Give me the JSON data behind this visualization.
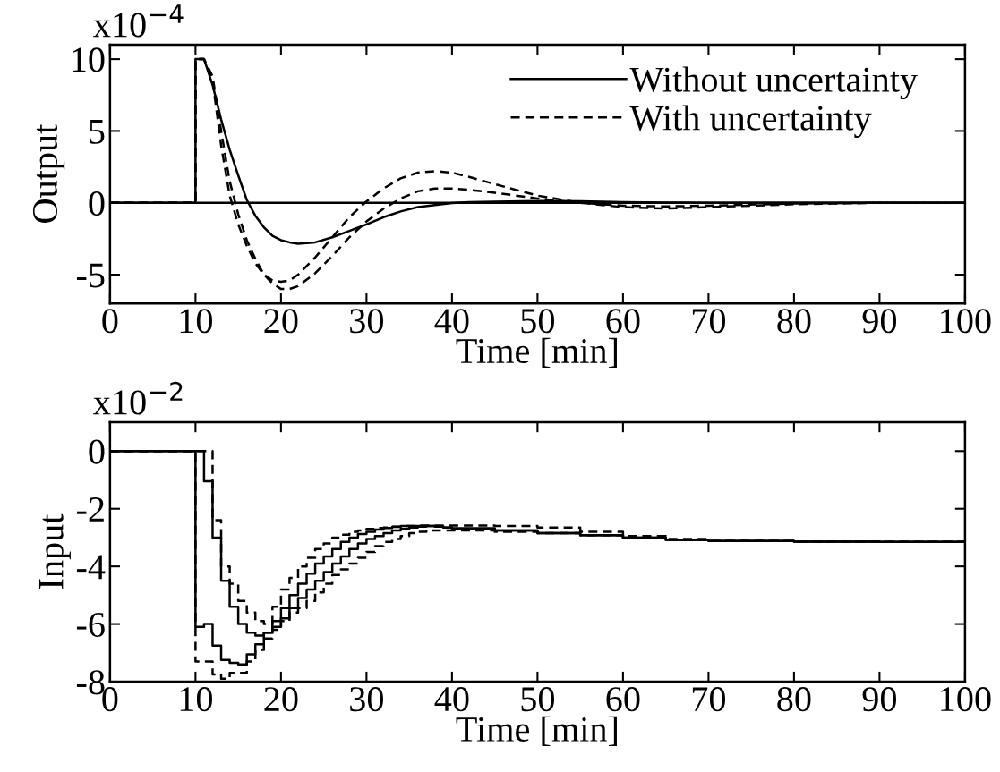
{
  "chart_data": [
    {
      "type": "line",
      "xlabel": "Time [min]",
      "ylabel": "Output",
      "annotations": [
        "x10$^{−4}$"
      ],
      "legend": "top right",
      "x": [
        0,
        10,
        10,
        11,
        12,
        13,
        14,
        15,
        16,
        17,
        18,
        19,
        20,
        21,
        22,
        24,
        26,
        28,
        30,
        32,
        34,
        36,
        38,
        40,
        42,
        45,
        50,
        55,
        60,
        65,
        70,
        80,
        90,
        100
      ],
      "series": [
        {
          "name": "Without uncertainty",
          "color": "#000000",
          "line_style": "solid",
          "values": [
            0,
            0,
            10,
            10,
            8.2,
            5.8,
            3.7,
            1.9,
            0.2,
            -0.9,
            -1.7,
            -2.3,
            -2.6,
            -2.75,
            -2.85,
            -2.75,
            -2.4,
            -1.95,
            -1.5,
            -1.0,
            -0.6,
            -0.3,
            -0.15,
            -0.02,
            0.05,
            0.08,
            0.12,
            0.1,
            0.05,
            0.02,
            0,
            0,
            0,
            0
          ]
        },
        {
          "name": "With uncertainty",
          "color": "#000000",
          "line_style": "dashed",
          "values": [
            0,
            0,
            10,
            10,
            8.5,
            4.0,
            0.5,
            -1.5,
            -3.0,
            -4.2,
            -5.0,
            -5.4,
            -5.5,
            -5.4,
            -5.0,
            -3.8,
            -2.4,
            -1.0,
            0.1,
            1.0,
            1.7,
            2.1,
            2.2,
            2.1,
            1.8,
            1.3,
            0.5,
            0.0,
            -0.3,
            -0.4,
            -0.3,
            -0.1,
            0,
            0
          ]
        },
        {
          "color": "#000000",
          "line_style": "dashed",
          "values": [
            0,
            0,
            10,
            10,
            8.8,
            5.0,
            1.5,
            -0.8,
            -2.6,
            -3.9,
            -5.0,
            -5.6,
            -6.0,
            -6.0,
            -5.8,
            -4.9,
            -3.7,
            -2.4,
            -1.3,
            -0.4,
            0.3,
            0.8,
            1.0,
            1.0,
            0.9,
            0.7,
            0.3,
            0.0,
            -0.2,
            -0.25,
            -0.2,
            -0.05,
            0,
            0
          ]
        }
      ],
      "ref_lines": [
        {
          "axis": "y",
          "value": 0,
          "color": "#000000",
          "line_style": "solid"
        }
      ],
      "xlim": [
        0,
        100
      ],
      "xticks": [
        0,
        10,
        20,
        30,
        40,
        50,
        60,
        70,
        80,
        90,
        100
      ],
      "ylim": [
        -7,
        11
      ],
      "yticks": [
        -5,
        0,
        5,
        10
      ],
      "grid": false
    },
    {
      "type": "step",
      "xlabel": "Time [min]",
      "ylabel": "Input",
      "annotations": [
        "x10$^{−2}$"
      ],
      "legend": false,
      "x": [
        0,
        10,
        11,
        12,
        13,
        14,
        15,
        16,
        17,
        18,
        19,
        20,
        21,
        22,
        23,
        24,
        25,
        26,
        27,
        28,
        29,
        30,
        31,
        32,
        33,
        34,
        35,
        36,
        37,
        38,
        39,
        40,
        45,
        50,
        55,
        60,
        65,
        70,
        80,
        90,
        100
      ],
      "series": [
        {
          "color": "#000000",
          "line_style": "solid",
          "values": [
            0,
            0,
            -1.05,
            -3.0,
            -4.5,
            -5.4,
            -6.0,
            -6.3,
            -6.4,
            -6.3,
            -6.1,
            -5.8,
            -5.45,
            -5.1,
            -4.8,
            -4.5,
            -4.2,
            -3.9,
            -3.65,
            -3.4,
            -3.2,
            -3.05,
            -2.95,
            -2.85,
            -2.75,
            -2.7,
            -2.65,
            -2.62,
            -2.6,
            -2.62,
            -2.65,
            -2.68,
            -2.75,
            -2.85,
            -2.92,
            -3.0,
            -3.08,
            -3.12,
            -3.14,
            -3.15,
            -3.15
          ]
        },
        {
          "color": "#000000",
          "line_style": "solid",
          "values": [
            0,
            -6.1,
            -6.0,
            -6.75,
            -7.25,
            -7.35,
            -7.4,
            -7.05,
            -6.7,
            -6.3,
            -5.9,
            -5.45,
            -5.0,
            -4.6,
            -4.25,
            -3.9,
            -3.65,
            -3.4,
            -3.15,
            -3.0,
            -2.88,
            -2.8,
            -2.72,
            -2.67,
            -2.63,
            -2.6,
            -2.6,
            -2.6,
            -2.6,
            -2.62,
            -2.65,
            -2.68,
            -2.75,
            -2.85,
            -2.92,
            -3.0,
            -3.08,
            -3.12,
            -3.14,
            -3.15,
            -3.15
          ]
        },
        {
          "color": "#000000",
          "line_style": "dashed",
          "values": [
            0,
            0,
            0,
            -2.4,
            -4.0,
            -4.6,
            -5.2,
            -5.6,
            -5.9,
            -6.0,
            -5.4,
            -4.8,
            -4.4,
            -4.0,
            -3.7,
            -3.4,
            -3.2,
            -3.0,
            -2.9,
            -2.8,
            -2.75,
            -2.7,
            -2.67,
            -2.65,
            -2.62,
            -2.6,
            -2.6,
            -2.58,
            -2.58,
            -2.58,
            -2.58,
            -2.58,
            -2.6,
            -2.65,
            -2.8,
            -2.95,
            -3.05,
            -3.12,
            -3.14,
            -3.15,
            -3.15
          ]
        },
        {
          "color": "#000000",
          "line_style": "dashed",
          "values": [
            0,
            -7.3,
            -7.3,
            -7.75,
            -7.9,
            -7.7,
            -7.7,
            -7.3,
            -6.9,
            -6.5,
            -6.2,
            -5.9,
            -5.6,
            -5.45,
            -5.2,
            -4.9,
            -4.6,
            -4.3,
            -4.1,
            -3.9,
            -3.7,
            -3.5,
            -3.3,
            -3.15,
            -3.05,
            -2.95,
            -2.85,
            -2.8,
            -2.75,
            -2.75,
            -2.75,
            -2.75,
            -2.8,
            -2.85,
            -2.92,
            -3.0,
            -3.08,
            -3.12,
            -3.14,
            -3.15,
            -3.15
          ]
        }
      ],
      "xlim": [
        0,
        100
      ],
      "xticks": [
        0,
        10,
        20,
        30,
        40,
        50,
        60,
        70,
        80,
        90,
        100
      ],
      "ylim": [
        -8,
        1
      ],
      "yticks": [
        -8,
        -6,
        -4,
        -2,
        0
      ],
      "grid": false
    }
  ]
}
